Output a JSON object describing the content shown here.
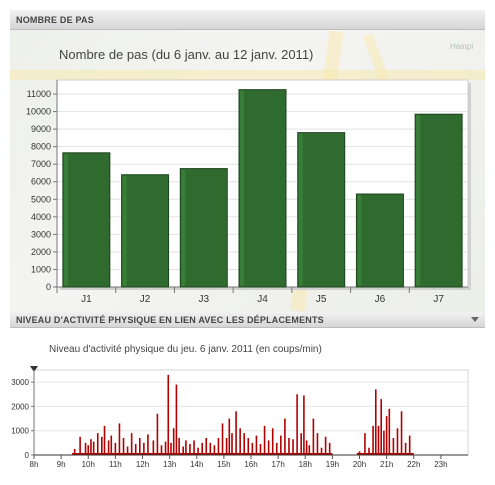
{
  "header_top": {
    "label": "NOMBRE DE PAS"
  },
  "header_bottom": {
    "label": "NIVEAU D'ACTIVITÉ PHYSIQUE EN LIEN AVEC LES DÉPLACEMENTS"
  },
  "map_labels": [
    "Hampi"
  ],
  "chart_data": [
    {
      "type": "bar",
      "title": "Nombre de pas (du 6 janv. au 12 janv. 2011)",
      "categories": [
        "J1",
        "J2",
        "J3",
        "J4",
        "J5",
        "J6",
        "J7"
      ],
      "values": [
        7650,
        6400,
        6750,
        11250,
        8800,
        5300,
        9850
      ],
      "yticks": [
        0,
        1000,
        2000,
        3000,
        4000,
        5000,
        6000,
        7000,
        8000,
        9000,
        10000,
        11000
      ],
      "ylim": [
        0,
        11800
      ],
      "bar_color": "#2f6b2f",
      "grid": true
    },
    {
      "type": "area",
      "title": "Niveau d'activité physique du jeu. 6 janv. 2011 (en coups/min)",
      "xticks": [
        "8h",
        "9h",
        "10h",
        "11h",
        "12h",
        "13h",
        "14h",
        "15h",
        "16h",
        "17h",
        "18h",
        "19h",
        "20h",
        "21h",
        "22h",
        "23h"
      ],
      "yticks": [
        0,
        1000,
        2000,
        3000
      ],
      "ylim": [
        0,
        3500
      ],
      "xlim": [
        8,
        24
      ],
      "color": "#b00000",
      "series": [
        {
          "x": [
            9.5,
            9.7,
            9.9,
            10.0,
            10.1,
            10.2,
            10.35,
            10.5,
            10.6,
            10.75,
            10.85,
            11.0,
            11.15,
            11.3,
            11.45,
            11.6,
            11.75,
            11.9,
            12.05,
            12.2,
            12.4,
            12.55,
            12.7,
            12.85,
            12.95,
            13.05,
            13.15,
            13.25,
            13.35,
            13.5,
            13.6,
            13.75,
            13.9,
            14.05,
            14.2,
            14.35,
            14.5,
            14.65,
            14.8,
            14.95,
            15.1,
            15.2,
            15.3,
            15.45,
            15.6,
            15.75,
            15.9,
            16.05,
            16.2,
            16.35,
            16.5,
            16.65,
            16.8,
            16.95,
            17.1,
            17.25,
            17.4,
            17.55,
            17.7,
            17.85,
            17.95,
            18.05,
            18.15,
            18.3,
            18.45,
            18.6,
            18.75,
            18.9,
            20.0,
            20.2,
            20.35,
            20.5,
            20.6,
            20.7,
            20.8,
            20.9,
            21.0,
            21.1,
            21.25,
            21.4,
            21.55,
            21.7,
            21.85
          ],
          "y": [
            250,
            750,
            500,
            400,
            650,
            550,
            900,
            750,
            1200,
            600,
            800,
            500,
            1300,
            700,
            350,
            900,
            450,
            700,
            500,
            850,
            600,
            1700,
            400,
            550,
            3300,
            500,
            1100,
            2900,
            700,
            350,
            600,
            450,
            600,
            300,
            500,
            700,
            500,
            400,
            700,
            1300,
            700,
            1500,
            900,
            1800,
            1100,
            900,
            700,
            500,
            800,
            450,
            1200,
            600,
            1100,
            500,
            800,
            1500,
            700,
            650,
            2500,
            900,
            2450,
            600,
            400,
            1500,
            900,
            300,
            750,
            500,
            150,
            900,
            300,
            1200,
            2700,
            1200,
            2300,
            1000,
            1600,
            1900,
            700,
            1100,
            1800,
            500,
            800
          ]
        }
      ]
    }
  ]
}
